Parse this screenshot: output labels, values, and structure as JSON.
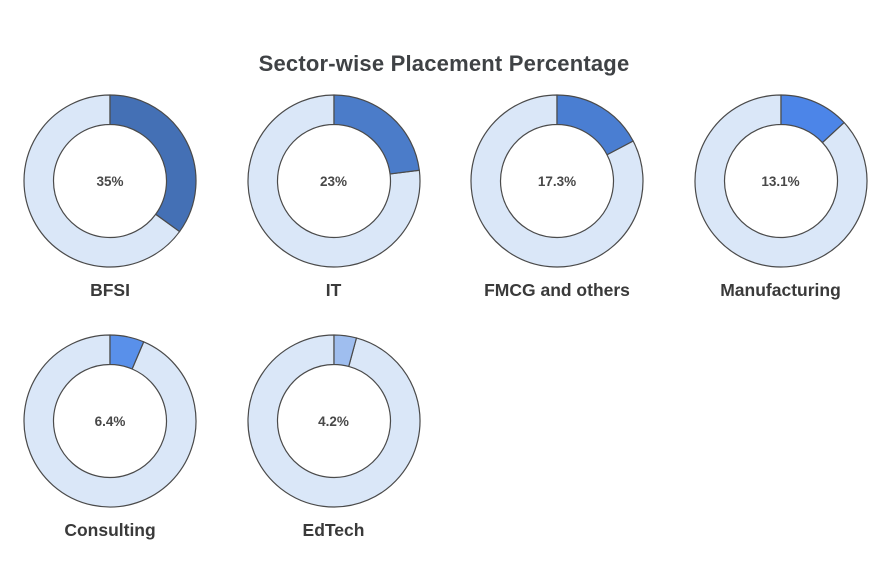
{
  "chart_data": {
    "type": "pie",
    "subtype": "donut-multiples",
    "title": "Sector-wise Placement Percentage",
    "units": "%",
    "start_angle": "12-oclock",
    "direction": "clockwise",
    "legend_position": "none",
    "charts": [
      {
        "label": "BFSI",
        "value": 35,
        "display_value": "35%",
        "fill": "#4470B5"
      },
      {
        "label": "IT",
        "value": 23,
        "display_value": "23%",
        "fill": "#4B7CC9"
      },
      {
        "label": "FMCG and others",
        "value": 17.3,
        "display_value": "17.3%",
        "fill": "#4A7ED2"
      },
      {
        "label": "Manufacturing",
        "value": 13.1,
        "display_value": "13.1%",
        "fill": "#4C85E8"
      },
      {
        "label": "Consulting",
        "value": 6.4,
        "display_value": "6.4%",
        "fill": "#5990EA"
      },
      {
        "label": "EdTech",
        "value": 4.2,
        "display_value": "4.2%",
        "fill": "#9FBEEF"
      }
    ],
    "colors": {
      "track": "#DAE7F8",
      "outline": "#4A4A4A",
      "title_text": "#3F4245",
      "label_text": "#3A3A3A",
      "value_text": "#484848",
      "background": "#FFFFFF"
    }
  }
}
